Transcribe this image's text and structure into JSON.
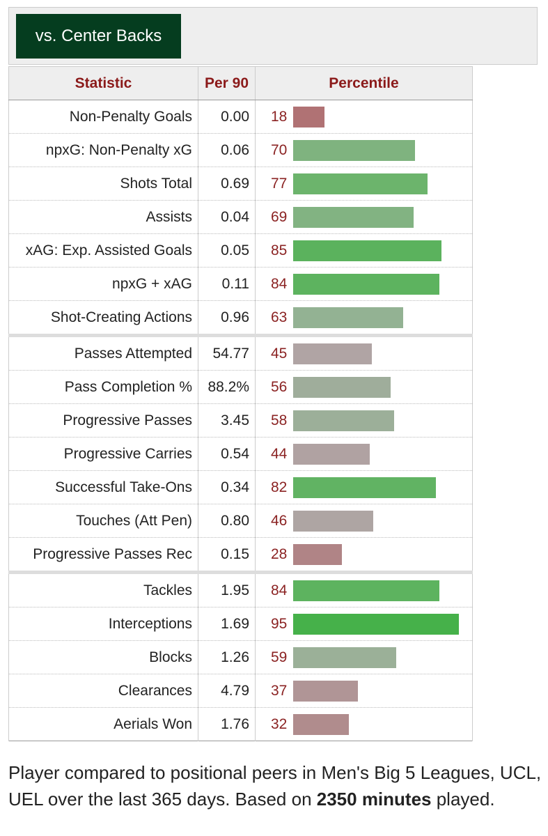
{
  "tab": "vs. Center Backs",
  "table": {
    "headers": [
      "Statistic",
      "Per 90",
      "Percentile"
    ],
    "groups": [
      {
        "rows": [
          {
            "stat": "Non-Penalty Goals",
            "per90": "0.00",
            "percentile": 18
          },
          {
            "stat": "npxG: Non-Penalty xG",
            "per90": "0.06",
            "percentile": 70
          },
          {
            "stat": "Shots Total",
            "per90": "0.69",
            "percentile": 77
          },
          {
            "stat": "Assists",
            "per90": "0.04",
            "percentile": 69
          },
          {
            "stat": "xAG: Exp. Assisted Goals",
            "per90": "0.05",
            "percentile": 85
          },
          {
            "stat": "npxG + xAG",
            "per90": "0.11",
            "percentile": 84
          },
          {
            "stat": "Shot-Creating Actions",
            "per90": "0.96",
            "percentile": 63
          }
        ]
      },
      {
        "rows": [
          {
            "stat": "Passes Attempted",
            "per90": "54.77",
            "percentile": 45
          },
          {
            "stat": "Pass Completion %",
            "per90": "88.2%",
            "percentile": 56
          },
          {
            "stat": "Progressive Passes",
            "per90": "3.45",
            "percentile": 58
          },
          {
            "stat": "Progressive Carries",
            "per90": "0.54",
            "percentile": 44
          },
          {
            "stat": "Successful Take-Ons",
            "per90": "0.34",
            "percentile": 82
          },
          {
            "stat": "Touches (Att Pen)",
            "per90": "0.80",
            "percentile": 46
          },
          {
            "stat": "Progressive Passes Rec",
            "per90": "0.15",
            "percentile": 28
          }
        ]
      },
      {
        "rows": [
          {
            "stat": "Tackles",
            "per90": "1.95",
            "percentile": 84
          },
          {
            "stat": "Interceptions",
            "per90": "1.69",
            "percentile": 95
          },
          {
            "stat": "Blocks",
            "per90": "1.26",
            "percentile": 59
          },
          {
            "stat": "Clearances",
            "per90": "4.79",
            "percentile": 37
          },
          {
            "stat": "Aerials Won",
            "per90": "1.76",
            "percentile": 32
          }
        ]
      }
    ]
  },
  "footer": {
    "text": "Player compared to positional peers in Men's Big 5 Leagues, UCL, UEL over the last 365 days. Based on ",
    "bold": "2350 minutes",
    "end": " played."
  }
}
